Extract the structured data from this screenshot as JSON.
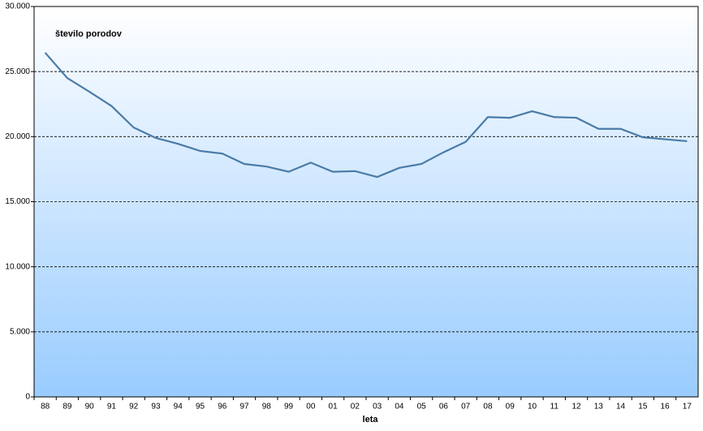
{
  "chart_data": {
    "type": "line",
    "title": "število porodov",
    "x_label": "leta",
    "categories": [
      "88",
      "89",
      "90",
      "91",
      "92",
      "93",
      "94",
      "95",
      "96",
      "97",
      "98",
      "99",
      "00",
      "01",
      "02",
      "03",
      "04",
      "05",
      "06",
      "07",
      "08",
      "09",
      "10",
      "11",
      "12",
      "13",
      "14",
      "15",
      "16",
      "17"
    ],
    "series": [
      {
        "name": "število porodov",
        "color": "#4a7ba7",
        "values": [
          26450,
          24500,
          23450,
          22350,
          20700,
          19900,
          19450,
          18900,
          18700,
          17900,
          17700,
          17300,
          18000,
          17300,
          17350,
          16900,
          17600,
          17900,
          18800,
          19600,
          21500,
          21450,
          21950,
          21500,
          21450,
          20600,
          20600,
          19950,
          19800,
          19650
        ]
      }
    ],
    "ylim": [
      0,
      30000
    ],
    "yticks": [
      0,
      {
        "value": 5000,
        "label": "5.000"
      },
      {
        "value": 10000,
        "label": "10.000"
      },
      {
        "value": 15000,
        "label": "15.000"
      },
      {
        "value": 20000,
        "label": "20.000"
      },
      {
        "value": 25000,
        "label": "25.000"
      },
      {
        "value": 30000,
        "label": "30.000"
      }
    ],
    "grid": true
  }
}
